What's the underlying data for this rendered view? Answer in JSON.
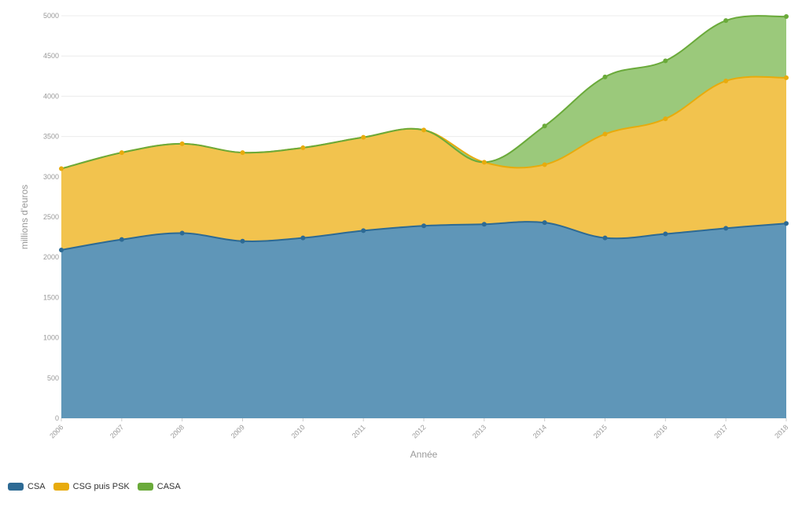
{
  "chart_data": {
    "type": "area",
    "stacked": true,
    "x": [
      "2006",
      "2007",
      "2008",
      "2009",
      "2010",
      "2011",
      "2012",
      "2013",
      "2014",
      "2015",
      "2016",
      "2017",
      "2018"
    ],
    "series": [
      {
        "name": "CSA",
        "color": "#2d6a94",
        "fill": "#5f96b8",
        "values": [
          2090,
          2220,
          2300,
          2200,
          2240,
          2330,
          2390,
          2410,
          2430,
          2240,
          2290,
          2360,
          2420
        ]
      },
      {
        "name": "CSG puis PSK",
        "color": "#e8ab0c",
        "fill": "#f2c34e",
        "values": [
          1010,
          1080,
          1110,
          1100,
          1120,
          1160,
          1190,
          770,
          720,
          1290,
          1430,
          1830,
          1810
        ]
      },
      {
        "name": "CASA",
        "color": "#6aaa3a",
        "fill": "#9bc97b",
        "values": [
          0,
          0,
          0,
          0,
          0,
          0,
          0,
          0,
          480,
          710,
          720,
          750,
          760
        ]
      }
    ],
    "xlabel": "Année",
    "ylabel": "millions d'euros",
    "ylim": [
      0,
      5000
    ],
    "yticks": [
      "0",
      "500",
      "1000",
      "1500",
      "2000",
      "2500",
      "3000",
      "3500",
      "4000",
      "4500",
      "5000"
    ],
    "grid": true,
    "legend_position": "bottom-left"
  }
}
